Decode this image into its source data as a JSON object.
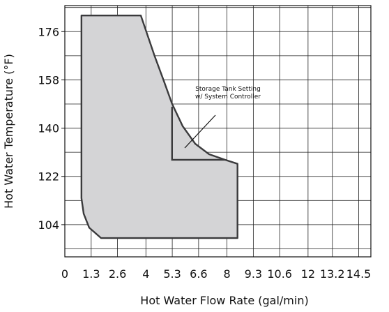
{
  "chart_data": {
    "type": "area",
    "xlabel": "Hot Water Flow Rate (gal/min)",
    "ylabel": "Hot Water Temperature (°F)",
    "xlim": [
      0,
      15.1
    ],
    "ylim": [
      92,
      185.7
    ],
    "xticks": [
      0,
      1.3,
      2.6,
      4,
      5.3,
      6.6,
      8,
      9.3,
      10.6,
      12,
      13.2,
      14.5
    ],
    "yticks": [
      104,
      122,
      140,
      158,
      176
    ],
    "y_gridlines": [
      95,
      104,
      113,
      122,
      131,
      140,
      149,
      158,
      167,
      176,
      185
    ],
    "grid": true,
    "series": [
      {
        "fill": "#d4d4d6",
        "color": "#3a3a3c",
        "x": [
          0.82,
          3.75,
          4.02,
          4.43,
          4.88,
          5.29,
          5.81,
          6.43,
          7.11,
          7.9,
          8.52,
          8.52,
          1.79,
          1.2,
          0.93,
          0.82
        ],
        "y": [
          182,
          182,
          176,
          166.9,
          157.7,
          149.1,
          140.8,
          134.2,
          130.3,
          128.2,
          126.7,
          99,
          99,
          102.9,
          108.1,
          113.9
        ]
      }
    ],
    "tank_setting": {
      "color": "#3a3a3c",
      "x": [
        5.29,
        5.29,
        7.9
      ],
      "y": [
        148,
        128.2,
        128.2
      ]
    },
    "annotation": [
      "Storage Tank Setting",
      "w/ System Controller"
    ]
  }
}
